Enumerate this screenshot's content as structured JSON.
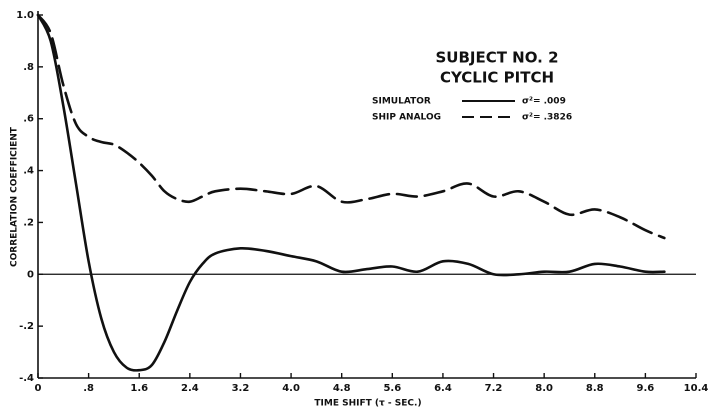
{
  "chart_data": {
    "type": "line",
    "title": "SUBJECT NO. 2",
    "subtitle": "CYCLIC PITCH",
    "x_label": "TIME SHIFT (τ - SEC.)",
    "y_label": "CORRELATION COEFFICIENT",
    "x": [
      0,
      0.2,
      0.4,
      0.6,
      0.8,
      1.0,
      1.2,
      1.4,
      1.6,
      1.8,
      2.0,
      2.2,
      2.4,
      2.6,
      2.8,
      3.2,
      3.6,
      4.0,
      4.4,
      4.8,
      5.2,
      5.6,
      6.0,
      6.4,
      6.8,
      7.2,
      7.6,
      8.0,
      8.4,
      8.8,
      9.2,
      9.6,
      9.9
    ],
    "series": [
      {
        "name": "SIMULATOR",
        "annotation": "σ²= .009",
        "color": "#111111",
        "dashed": false,
        "values": [
          1.0,
          0.9,
          0.65,
          0.35,
          0.05,
          -0.17,
          -0.3,
          -0.36,
          -0.37,
          -0.35,
          -0.26,
          -0.14,
          -0.03,
          0.04,
          0.08,
          0.1,
          0.09,
          0.07,
          0.05,
          0.01,
          0.02,
          0.03,
          0.01,
          0.05,
          0.04,
          0.0,
          0.0,
          0.01,
          0.01,
          0.04,
          0.03,
          0.01,
          0.01
        ]
      },
      {
        "name": "SHIP ANALOG",
        "annotation": "σ²= .3826",
        "color": "#111111",
        "dashed": true,
        "values": [
          1.0,
          0.93,
          0.73,
          0.58,
          0.53,
          0.51,
          0.5,
          0.47,
          0.43,
          0.38,
          0.32,
          0.29,
          0.28,
          0.3,
          0.32,
          0.33,
          0.32,
          0.31,
          0.34,
          0.28,
          0.29,
          0.31,
          0.3,
          0.32,
          0.35,
          0.3,
          0.32,
          0.28,
          0.23,
          0.25,
          0.22,
          0.17,
          0.14
        ]
      }
    ],
    "xlim": [
      0,
      10.4
    ],
    "xticks": [
      0,
      {
        "value": 0.8,
        "label": ".8"
      },
      1.6,
      2.4,
      3.2,
      {
        "value": 4.0,
        "label": "4.0"
      },
      4.8,
      5.6,
      6.4,
      7.2,
      {
        "value": 8.0,
        "label": "8.0"
      },
      8.8,
      9.6,
      10.4
    ],
    "ylim": [
      -0.4,
      1.0
    ],
    "yticks": [
      {
        "value": -0.4,
        "label": "-.4"
      },
      {
        "value": -0.2,
        "label": "-.2"
      },
      0,
      {
        "value": 0.2,
        "label": ".2"
      },
      {
        "value": 0.4,
        "label": ".4"
      },
      {
        "value": 0.6,
        "label": ".6"
      },
      {
        "value": 0.8,
        "label": ".8"
      },
      {
        "value": 1.0,
        "label": "1.0"
      }
    ],
    "zero_line": true,
    "grid": false
  }
}
